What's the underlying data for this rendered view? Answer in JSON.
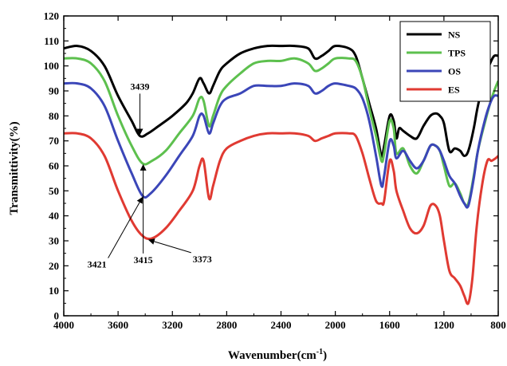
{
  "chart_data": {
    "type": "line",
    "title": "",
    "xlabel": "Wavenumber(cm",
    "xlabel_sup": "-1",
    "xlabel_close": ")",
    "ylabel": "Transmittivity(%)",
    "xlim": [
      4000,
      800
    ],
    "ylim": [
      0,
      120
    ],
    "x_reversed": true,
    "x_ticks": [
      4000,
      3600,
      3200,
      2800,
      2400,
      2000,
      1600,
      1200,
      800
    ],
    "y_ticks": [
      0,
      10,
      20,
      30,
      40,
      50,
      60,
      70,
      80,
      90,
      100,
      110,
      120
    ],
    "grid": false,
    "legend_position": "top-right",
    "series": [
      {
        "name": "NS",
        "color": "#000000",
        "points": [
          [
            4000,
            107
          ],
          [
            3900,
            108
          ],
          [
            3800,
            106
          ],
          [
            3700,
            100
          ],
          [
            3600,
            88
          ],
          [
            3500,
            78
          ],
          [
            3440,
            72
          ],
          [
            3380,
            73
          ],
          [
            3300,
            76
          ],
          [
            3200,
            80
          ],
          [
            3100,
            85
          ],
          [
            3050,
            89
          ],
          [
            3000,
            95
          ],
          [
            2970,
            93
          ],
          [
            2930,
            89
          ],
          [
            2900,
            92
          ],
          [
            2850,
            98
          ],
          [
            2800,
            101
          ],
          [
            2700,
            105
          ],
          [
            2600,
            107
          ],
          [
            2500,
            108
          ],
          [
            2400,
            108
          ],
          [
            2300,
            108
          ],
          [
            2200,
            107
          ],
          [
            2150,
            103
          ],
          [
            2100,
            104
          ],
          [
            2050,
            106
          ],
          [
            2000,
            108
          ],
          [
            1900,
            107
          ],
          [
            1850,
            104
          ],
          [
            1800,
            95
          ],
          [
            1750,
            85
          ],
          [
            1700,
            75
          ],
          [
            1660,
            64
          ],
          [
            1640,
            68
          ],
          [
            1600,
            80
          ],
          [
            1570,
            78
          ],
          [
            1550,
            71
          ],
          [
            1530,
            75
          ],
          [
            1500,
            74
          ],
          [
            1450,
            72
          ],
          [
            1400,
            71
          ],
          [
            1350,
            76
          ],
          [
            1300,
            80
          ],
          [
            1260,
            81
          ],
          [
            1230,
            80
          ],
          [
            1200,
            77
          ],
          [
            1160,
            66
          ],
          [
            1120,
            67
          ],
          [
            1080,
            66
          ],
          [
            1050,
            64
          ],
          [
            1020,
            66
          ],
          [
            980,
            75
          ],
          [
            950,
            84
          ],
          [
            900,
            95
          ],
          [
            860,
            101
          ],
          [
            830,
            104
          ],
          [
            800,
            104
          ]
        ]
      },
      {
        "name": "TPS",
        "color": "#5dc04e",
        "points": [
          [
            4000,
            103
          ],
          [
            3900,
            103
          ],
          [
            3800,
            101
          ],
          [
            3700,
            94
          ],
          [
            3600,
            80
          ],
          [
            3500,
            68
          ],
          [
            3420,
            61
          ],
          [
            3350,
            62
          ],
          [
            3250,
            66
          ],
          [
            3150,
            73
          ],
          [
            3050,
            80
          ],
          [
            3000,
            87
          ],
          [
            2970,
            86
          ],
          [
            2930,
            76
          ],
          [
            2900,
            80
          ],
          [
            2850,
            88
          ],
          [
            2800,
            92
          ],
          [
            2700,
            97
          ],
          [
            2600,
            101
          ],
          [
            2500,
            102
          ],
          [
            2400,
            102
          ],
          [
            2300,
            103
          ],
          [
            2200,
            101
          ],
          [
            2150,
            98
          ],
          [
            2100,
            99
          ],
          [
            2050,
            101
          ],
          [
            2000,
            103
          ],
          [
            1900,
            103
          ],
          [
            1850,
            102
          ],
          [
            1800,
            95
          ],
          [
            1750,
            83
          ],
          [
            1700,
            72
          ],
          [
            1660,
            62
          ],
          [
            1640,
            65
          ],
          [
            1600,
            78
          ],
          [
            1570,
            75
          ],
          [
            1550,
            65
          ],
          [
            1500,
            67
          ],
          [
            1450,
            60
          ],
          [
            1400,
            57
          ],
          [
            1350,
            62
          ],
          [
            1300,
            68
          ],
          [
            1260,
            68
          ],
          [
            1230,
            66
          ],
          [
            1200,
            60
          ],
          [
            1160,
            52
          ],
          [
            1120,
            53
          ],
          [
            1080,
            49
          ],
          [
            1050,
            45
          ],
          [
            1020,
            45
          ],
          [
            980,
            56
          ],
          [
            950,
            66
          ],
          [
            900,
            77
          ],
          [
            860,
            85
          ],
          [
            830,
            90
          ],
          [
            800,
            94
          ]
        ]
      },
      {
        "name": "OS",
        "color": "#3b46b8",
        "points": [
          [
            4000,
            93
          ],
          [
            3900,
            93
          ],
          [
            3800,
            91
          ],
          [
            3700,
            84
          ],
          [
            3600,
            70
          ],
          [
            3500,
            57
          ],
          [
            3420,
            48
          ],
          [
            3360,
            49
          ],
          [
            3250,
            56
          ],
          [
            3150,
            64
          ],
          [
            3050,
            72
          ],
          [
            3000,
            80
          ],
          [
            2970,
            80
          ],
          [
            2930,
            73
          ],
          [
            2900,
            77
          ],
          [
            2850,
            84
          ],
          [
            2800,
            87
          ],
          [
            2700,
            89
          ],
          [
            2600,
            92
          ],
          [
            2500,
            92
          ],
          [
            2400,
            92
          ],
          [
            2300,
            93
          ],
          [
            2200,
            92
          ],
          [
            2150,
            89
          ],
          [
            2100,
            90
          ],
          [
            2050,
            92
          ],
          [
            2000,
            93
          ],
          [
            1900,
            92
          ],
          [
            1850,
            91
          ],
          [
            1800,
            87
          ],
          [
            1750,
            78
          ],
          [
            1700,
            64
          ],
          [
            1660,
            52
          ],
          [
            1640,
            56
          ],
          [
            1600,
            70
          ],
          [
            1570,
            68
          ],
          [
            1550,
            63
          ],
          [
            1500,
            66
          ],
          [
            1450,
            62
          ],
          [
            1400,
            59
          ],
          [
            1350,
            62
          ],
          [
            1300,
            68
          ],
          [
            1260,
            68
          ],
          [
            1230,
            66
          ],
          [
            1200,
            62
          ],
          [
            1160,
            56
          ],
          [
            1120,
            53
          ],
          [
            1080,
            48
          ],
          [
            1050,
            45
          ],
          [
            1020,
            44
          ],
          [
            980,
            55
          ],
          [
            950,
            66
          ],
          [
            900,
            78
          ],
          [
            860,
            85
          ],
          [
            830,
            88
          ],
          [
            800,
            88
          ]
        ]
      },
      {
        "name": "ES",
        "color": "#e03a32",
        "points": [
          [
            4000,
            73
          ],
          [
            3900,
            73
          ],
          [
            3800,
            71
          ],
          [
            3700,
            64
          ],
          [
            3600,
            50
          ],
          [
            3500,
            38
          ],
          [
            3420,
            32
          ],
          [
            3350,
            31
          ],
          [
            3250,
            35
          ],
          [
            3150,
            42
          ],
          [
            3050,
            50
          ],
          [
            3000,
            60
          ],
          [
            2970,
            62
          ],
          [
            2930,
            47
          ],
          [
            2900,
            52
          ],
          [
            2850,
            62
          ],
          [
            2800,
            67
          ],
          [
            2700,
            70
          ],
          [
            2600,
            72
          ],
          [
            2500,
            73
          ],
          [
            2400,
            73
          ],
          [
            2300,
            73
          ],
          [
            2200,
            72
          ],
          [
            2150,
            70
          ],
          [
            2100,
            71
          ],
          [
            2050,
            72
          ],
          [
            2000,
            73
          ],
          [
            1900,
            73
          ],
          [
            1850,
            72
          ],
          [
            1800,
            65
          ],
          [
            1750,
            55
          ],
          [
            1700,
            46
          ],
          [
            1660,
            45
          ],
          [
            1640,
            46
          ],
          [
            1600,
            62
          ],
          [
            1570,
            58
          ],
          [
            1550,
            50
          ],
          [
            1500,
            42
          ],
          [
            1450,
            35
          ],
          [
            1400,
            33
          ],
          [
            1350,
            36
          ],
          [
            1300,
            44
          ],
          [
            1260,
            44
          ],
          [
            1230,
            40
          ],
          [
            1200,
            30
          ],
          [
            1160,
            18
          ],
          [
            1120,
            15
          ],
          [
            1080,
            12
          ],
          [
            1050,
            8
          ],
          [
            1020,
            5
          ],
          [
            990,
            15
          ],
          [
            960,
            35
          ],
          [
            920,
            52
          ],
          [
            880,
            62
          ],
          [
            850,
            62
          ],
          [
            820,
            63
          ],
          [
            800,
            64
          ]
        ]
      }
    ],
    "annotations": [
      {
        "label": "3439",
        "x": 3439,
        "y": 72,
        "series": "NS"
      },
      {
        "label": "3421",
        "x": 3421,
        "y": 48,
        "series": "OS"
      },
      {
        "label": "3415",
        "x": 3415,
        "y": 61,
        "series": "TPS"
      },
      {
        "label": "3373",
        "x": 3373,
        "y": 31,
        "series": "ES"
      }
    ]
  }
}
